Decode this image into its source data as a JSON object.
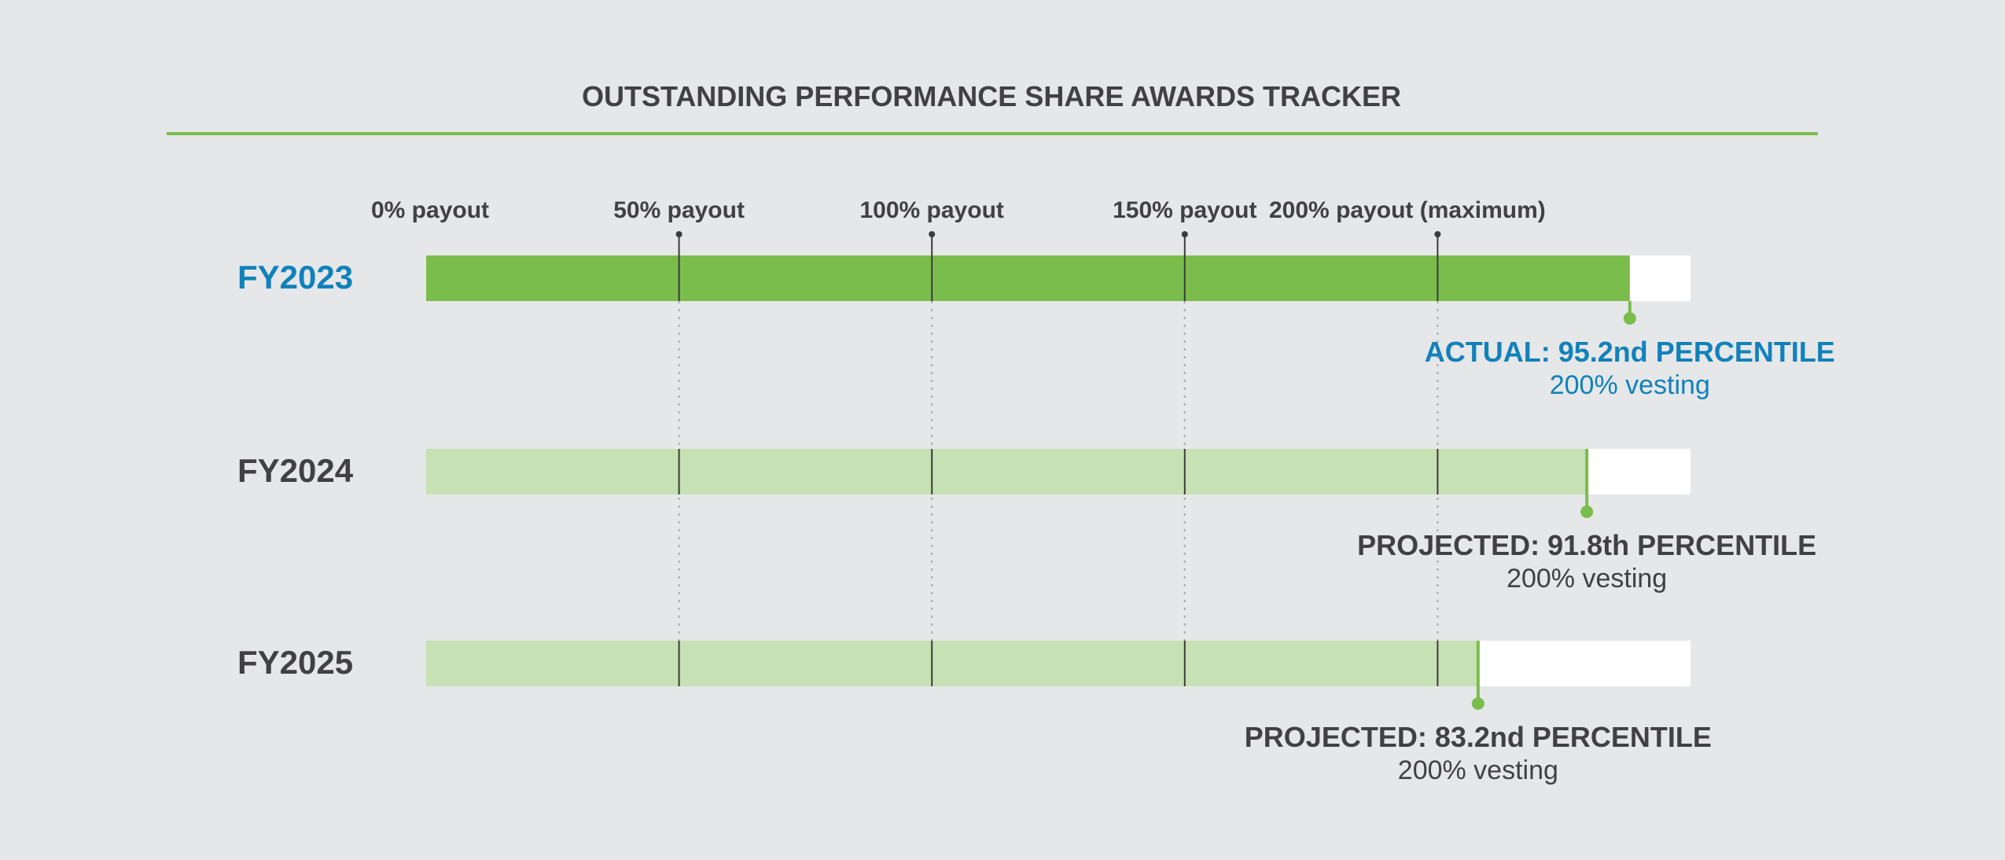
{
  "chart_data": {
    "type": "bar",
    "title": "OUTSTANDING PERFORMANCE SHARE AWARDS TRACKER",
    "xlabel": "",
    "ylabel": "",
    "axis": {
      "unit": "percentile",
      "range": [
        0,
        100
      ],
      "ticks": [
        {
          "value": 0,
          "label": "0% payout"
        },
        {
          "value": 20,
          "label": "50% payout"
        },
        {
          "value": 40,
          "label": "100% payout"
        },
        {
          "value": 60,
          "label": "150% payout"
        },
        {
          "value": 80,
          "label": "200% payout (maximum)"
        }
      ]
    },
    "categories": [
      "FY2023",
      "FY2024",
      "FY2025"
    ],
    "values": [
      95.2,
      91.8,
      83.2
    ],
    "rows": [
      {
        "label": "FY2023",
        "value": 95.2,
        "status": "actual",
        "annotation": "ACTUAL: 95.2nd PERCENTILE",
        "vesting": "200% vesting"
      },
      {
        "label": "FY2024",
        "value": 91.8,
        "status": "projected",
        "annotation": "PROJECTED: 91.8th PERCENTILE",
        "vesting": "200% vesting"
      },
      {
        "label": "FY2025",
        "value": 83.2,
        "status": "projected",
        "annotation": "PROJECTED: 83.2nd PERCENTILE",
        "vesting": "200% vesting"
      }
    ],
    "colors": {
      "background": "#e6e7e9",
      "actual_fill": "#7bbd4c",
      "projected_fill": "#c6e1b3",
      "track": "#ffffff",
      "accent_blue": "#1181ba",
      "text": "#414042",
      "rule": "#7bbd4c",
      "tick": "#3c3c3c"
    }
  }
}
